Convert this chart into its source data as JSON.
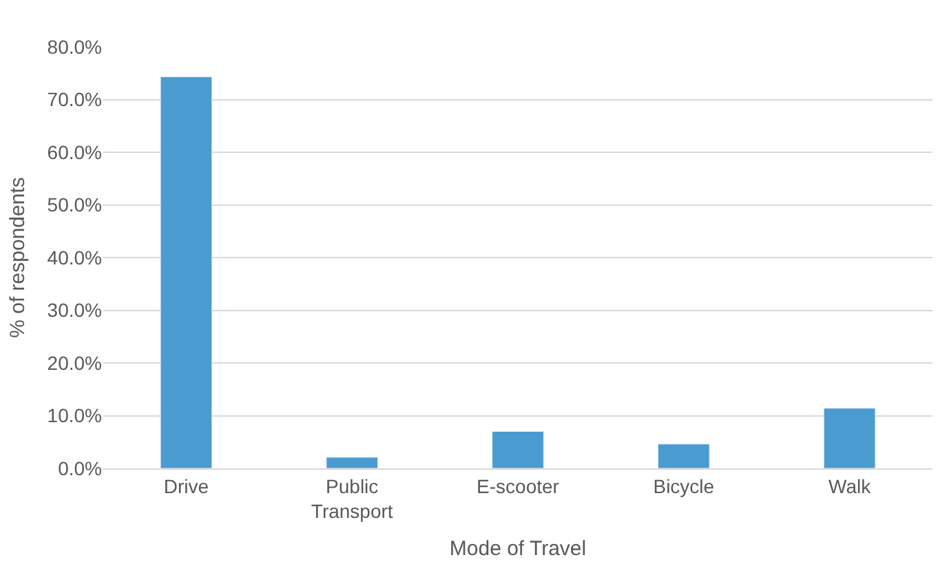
{
  "chart_data": {
    "type": "bar",
    "categories": [
      "Drive",
      "Public Transport",
      "E-scooter",
      "Bicycle",
      "Walk"
    ],
    "values": [
      74.3,
      2.1,
      7.0,
      4.6,
      11.4
    ],
    "color": "#4a9bd0",
    "xlabel": "Mode of Travel",
    "ylabel": "% of respondents",
    "ylim": [
      0,
      80
    ],
    "yticks": [
      {
        "value": 0,
        "label": "0.0%"
      },
      {
        "value": 10,
        "label": "10.0%"
      },
      {
        "value": 20,
        "label": "20.0%"
      },
      {
        "value": 30,
        "label": "30.0%"
      },
      {
        "value": 40,
        "label": "40.0%"
      },
      {
        "value": 50,
        "label": "50.0%"
      },
      {
        "value": 60,
        "label": "60.0%"
      },
      {
        "value": 70,
        "label": "70.0%"
      },
      {
        "value": 80,
        "label": "80.0%"
      }
    ],
    "grid": "y"
  }
}
